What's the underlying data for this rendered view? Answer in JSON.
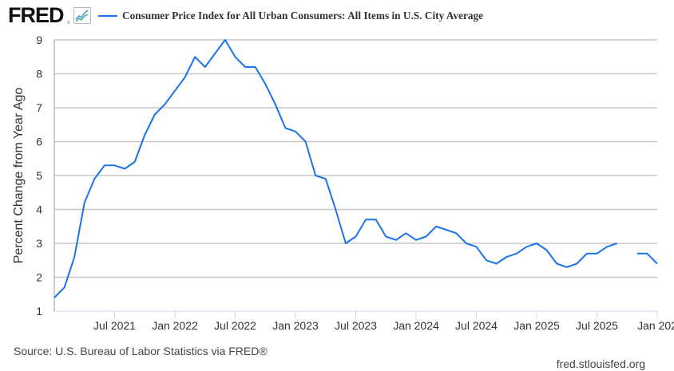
{
  "header": {
    "logo": "FRED",
    "logo_registered": "®",
    "logo_icon": "chart-line-icon"
  },
  "source": "Source: U.S. Bureau of Labor Statistics via FRED®",
  "site": "fred.stlouisfed.org",
  "colors": {
    "series": "#1a73e8",
    "grid": "#c8c8c8",
    "axis": "#ccd6eb",
    "text": "#333333"
  },
  "chart_data": {
    "type": "line",
    "title": "",
    "legend": [
      "Consumer Price Index for All Urban Consumers: All Items in U.S. City Average"
    ],
    "legend_position": "top-left",
    "xlabel": "",
    "ylabel": "Percent Change from Year Ago",
    "ylim": [
      1,
      9
    ],
    "yticks": [
      1,
      2,
      3,
      4,
      5,
      6,
      7,
      8,
      9
    ],
    "grid": true,
    "x_start": "2021-01",
    "x_end": "2026-01",
    "xticks": [
      {
        "month_index": 6,
        "label": "Jul 2021"
      },
      {
        "month_index": 12,
        "label": "Jan 2022"
      },
      {
        "month_index": 18,
        "label": "Jul 2022"
      },
      {
        "month_index": 24,
        "label": "Jan 2023"
      },
      {
        "month_index": 30,
        "label": "Jul 2023"
      },
      {
        "month_index": 36,
        "label": "Jan 2024"
      },
      {
        "month_index": 42,
        "label": "Jul 2024"
      },
      {
        "month_index": 48,
        "label": "Jan 2025"
      },
      {
        "month_index": 54,
        "label": "Jul 2025"
      },
      {
        "month_index": 60,
        "label": "Jan 202"
      }
    ],
    "series": [
      {
        "name": "Consumer Price Index for All Urban Consumers: All Items in U.S. City Average",
        "x": [
          "2021-01",
          "2021-02",
          "2021-03",
          "2021-04",
          "2021-05",
          "2021-06",
          "2021-07",
          "2021-08",
          "2021-09",
          "2021-10",
          "2021-11",
          "2021-12",
          "2022-01",
          "2022-02",
          "2022-03",
          "2022-04",
          "2022-05",
          "2022-06",
          "2022-07",
          "2022-08",
          "2022-09",
          "2022-10",
          "2022-11",
          "2022-12",
          "2023-01",
          "2023-02",
          "2023-03",
          "2023-04",
          "2023-05",
          "2023-06",
          "2023-07",
          "2023-08",
          "2023-09",
          "2023-10",
          "2023-11",
          "2023-12",
          "2024-01",
          "2024-02",
          "2024-03",
          "2024-04",
          "2024-05",
          "2024-06",
          "2024-07",
          "2024-08",
          "2024-09",
          "2024-10",
          "2024-11",
          "2024-12",
          "2025-01",
          "2025-02",
          "2025-03",
          "2025-04",
          "2025-05",
          "2025-06",
          "2025-07",
          "2025-08",
          "2025-09",
          "2025-10",
          "2025-11",
          "2025-12",
          "2026-01"
        ],
        "values": [
          1.4,
          1.7,
          2.6,
          4.2,
          4.9,
          5.3,
          5.3,
          5.2,
          5.4,
          6.2,
          6.8,
          7.1,
          7.5,
          7.9,
          8.5,
          8.2,
          8.6,
          9.0,
          8.5,
          8.2,
          8.2,
          7.7,
          7.1,
          6.4,
          6.3,
          6.0,
          5.0,
          4.9,
          4.0,
          3.0,
          3.2,
          3.7,
          3.7,
          3.2,
          3.1,
          3.3,
          3.1,
          3.2,
          3.5,
          3.4,
          3.3,
          3.0,
          2.9,
          2.5,
          2.4,
          2.6,
          2.7,
          2.9,
          3.0,
          2.8,
          2.4,
          2.3,
          2.4,
          2.7,
          2.7,
          2.9,
          3.0,
          null,
          2.7,
          2.7,
          2.4
        ]
      }
    ]
  }
}
